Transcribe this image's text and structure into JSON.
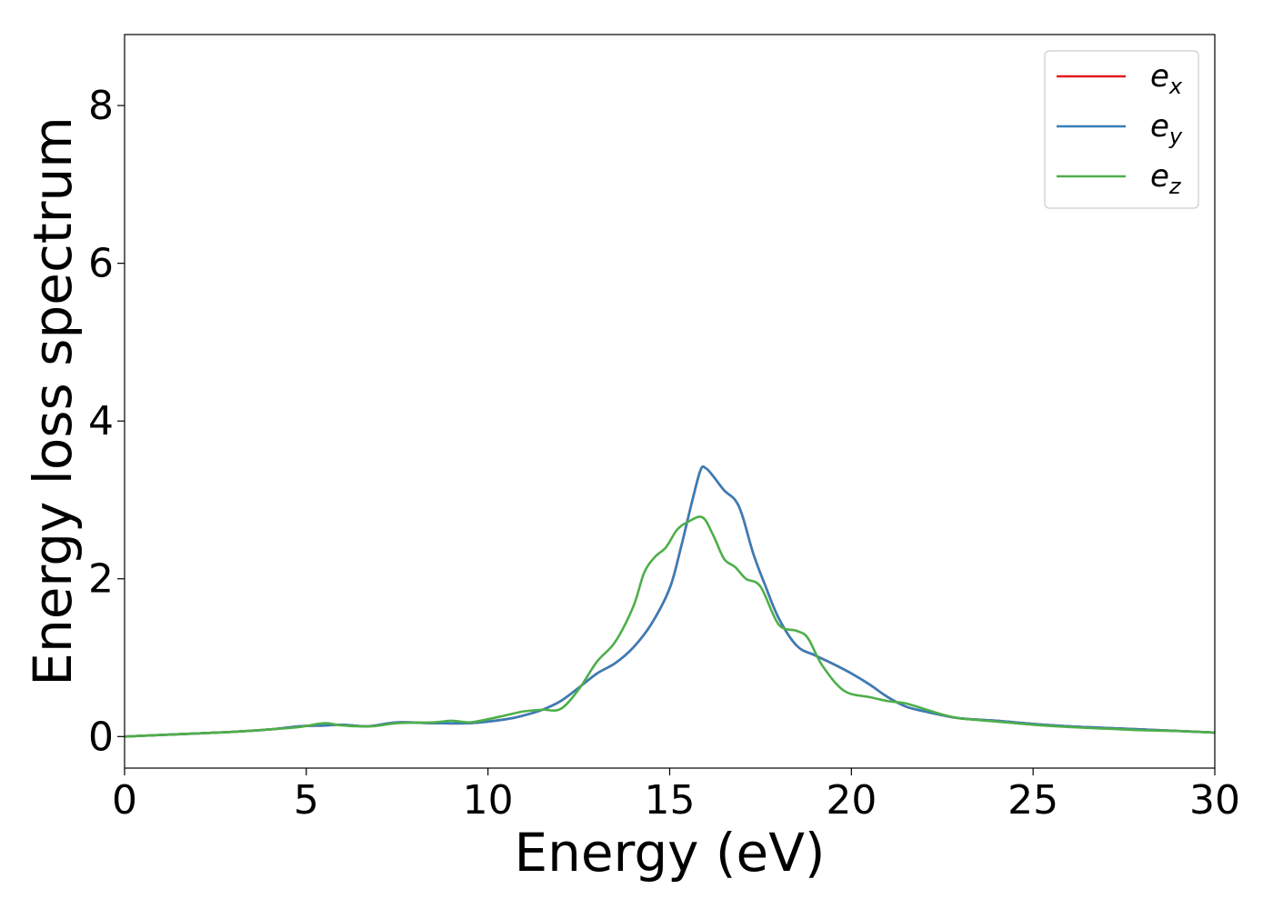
{
  "chart_data": {
    "type": "line",
    "xlabel": "Energy (eV)",
    "ylabel": "Energy loss spectrum",
    "xlim": [
      0,
      30
    ],
    "ylim": [
      -0.4,
      8.9
    ],
    "x_ticks": [
      0,
      5,
      10,
      15,
      20,
      25,
      30
    ],
    "y_ticks": [
      0,
      2,
      4,
      6,
      8
    ],
    "grid": false,
    "legend_position": "top-right",
    "series": [
      {
        "name": "e_x",
        "legend_base": "e",
        "legend_sub": "x",
        "color": "#e41a1c",
        "x": [
          0,
          1,
          2,
          3,
          4,
          4.8,
          5.5,
          6,
          6.7,
          7.5,
          8.5,
          9.5,
          10.5,
          11,
          11.5,
          12,
          12.5,
          13,
          13.5,
          14,
          14.5,
          15,
          15.3,
          15.6,
          15.85,
          16,
          16.2,
          16.5,
          16.8,
          17,
          17.3,
          17.6,
          18,
          18.5,
          19,
          19.5,
          20,
          20.5,
          21,
          21.5,
          22,
          22.5,
          23,
          24,
          25,
          26,
          27,
          28,
          29,
          30
        ],
        "y": [
          0,
          0.02,
          0.04,
          0.06,
          0.09,
          0.13,
          0.14,
          0.15,
          0.13,
          0.18,
          0.17,
          0.17,
          0.22,
          0.27,
          0.34,
          0.45,
          0.62,
          0.8,
          0.93,
          1.13,
          1.43,
          1.88,
          2.38,
          2.95,
          3.38,
          3.4,
          3.3,
          3.12,
          3.0,
          2.8,
          2.32,
          1.95,
          1.5,
          1.15,
          1.03,
          0.92,
          0.8,
          0.66,
          0.5,
          0.38,
          0.32,
          0.27,
          0.23,
          0.2,
          0.16,
          0.13,
          0.11,
          0.09,
          0.07,
          0.05
        ]
      },
      {
        "name": "e_y",
        "legend_base": "e",
        "legend_sub": "y",
        "color": "#377eb8",
        "x": [
          0,
          1,
          2,
          3,
          4,
          4.8,
          5.5,
          6,
          6.7,
          7.5,
          8.5,
          9.5,
          10.5,
          11,
          11.5,
          12,
          12.5,
          13,
          13.5,
          14,
          14.5,
          15,
          15.3,
          15.6,
          15.85,
          16,
          16.2,
          16.5,
          16.8,
          17,
          17.3,
          17.6,
          18,
          18.5,
          19,
          19.5,
          20,
          20.5,
          21,
          21.5,
          22,
          22.5,
          23,
          24,
          25,
          26,
          27,
          28,
          29,
          30
        ],
        "y": [
          0,
          0.02,
          0.04,
          0.06,
          0.09,
          0.13,
          0.14,
          0.15,
          0.13,
          0.18,
          0.17,
          0.17,
          0.22,
          0.27,
          0.34,
          0.45,
          0.62,
          0.8,
          0.93,
          1.13,
          1.43,
          1.88,
          2.38,
          2.95,
          3.38,
          3.4,
          3.3,
          3.12,
          3.0,
          2.8,
          2.32,
          1.95,
          1.5,
          1.15,
          1.03,
          0.92,
          0.8,
          0.66,
          0.5,
          0.38,
          0.32,
          0.27,
          0.23,
          0.2,
          0.16,
          0.13,
          0.11,
          0.09,
          0.07,
          0.05
        ]
      },
      {
        "name": "e_z",
        "legend_base": "e",
        "legend_sub": "z",
        "color": "#4daf4a",
        "x": [
          0,
          1,
          2,
          3,
          4,
          4.8,
          5.5,
          6,
          6.8,
          7.5,
          8.5,
          9,
          9.5,
          10,
          10.5,
          11,
          11.5,
          12,
          12.5,
          13,
          13.5,
          14,
          14.3,
          14.6,
          14.9,
          15.2,
          15.5,
          15.9,
          16.2,
          16.5,
          16.8,
          17.1,
          17.5,
          18,
          18.5,
          18.8,
          19.2,
          19.8,
          20.5,
          21,
          21.5,
          22,
          22.5,
          23,
          24,
          25,
          26,
          27,
          28,
          29,
          30
        ],
        "y": [
          0,
          0.02,
          0.04,
          0.06,
          0.09,
          0.12,
          0.17,
          0.14,
          0.13,
          0.17,
          0.18,
          0.2,
          0.18,
          0.22,
          0.27,
          0.32,
          0.34,
          0.35,
          0.6,
          0.95,
          1.2,
          1.65,
          2.08,
          2.28,
          2.4,
          2.62,
          2.72,
          2.78,
          2.55,
          2.25,
          2.15,
          2.0,
          1.9,
          1.42,
          1.34,
          1.25,
          0.9,
          0.58,
          0.5,
          0.45,
          0.42,
          0.35,
          0.28,
          0.23,
          0.19,
          0.15,
          0.12,
          0.1,
          0.08,
          0.07,
          0.05
        ]
      }
    ]
  }
}
